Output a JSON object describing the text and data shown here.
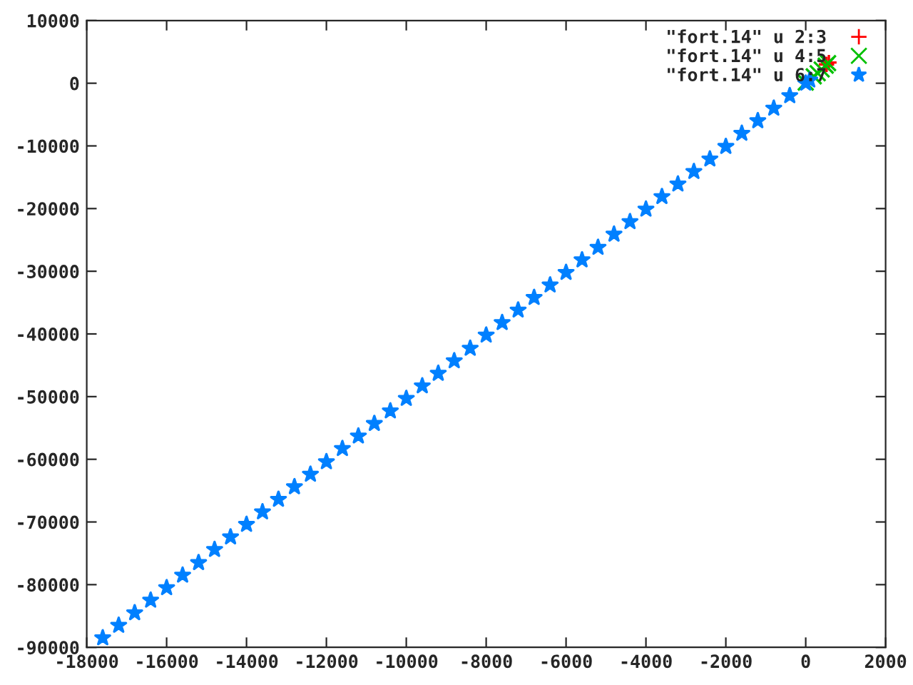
{
  "chart_data": {
    "type": "scatter",
    "legend": "top right",
    "grid": false,
    "xlim": [
      -18000,
      2000
    ],
    "xticks": [
      -18000,
      -16000,
      -14000,
      -12000,
      -10000,
      -8000,
      -6000,
      -4000,
      -2000,
      0,
      2000
    ],
    "ylim": [
      -90000,
      10000
    ],
    "yticks": [
      -90000,
      -80000,
      -70000,
      -60000,
      -50000,
      -40000,
      -30000,
      -20000,
      -10000,
      0,
      10000
    ],
    "series": [
      {
        "name": "\"fort.14\" u 2:3",
        "color": "#ff0000",
        "marker": "cross",
        "x": [
          520,
          580
        ],
        "values": [
          3000,
          3300
        ]
      },
      {
        "name": "\"fort.14\" u 4:5",
        "color": "#00c000",
        "marker": "x",
        "x": [
          0,
          200,
          300,
          400,
          500,
          560
        ],
        "values": [
          100,
          1100,
          1600,
          2200,
          2800,
          3200
        ]
      },
      {
        "name": "\"fort.14\" u 6:7",
        "color": "#0080ff",
        "marker": "star",
        "x": [
          -17600,
          -17200,
          -16800,
          -16400,
          -16000,
          -15600,
          -15200,
          -14800,
          -14400,
          -14000,
          -13600,
          -13200,
          -12800,
          -12400,
          -12000,
          -11600,
          -11200,
          -10800,
          -10400,
          -10000,
          -9600,
          -9200,
          -8800,
          -8400,
          -8000,
          -7600,
          -7200,
          -6800,
          -6400,
          -6000,
          -5600,
          -5200,
          -4800,
          -4400,
          -4000,
          -3600,
          -3200,
          -2800,
          -2400,
          -2000,
          -1600,
          -1200,
          -800,
          -400,
          0,
          100
        ],
        "values": [
          -88500,
          -86500,
          -84500,
          -82500,
          -80500,
          -78500,
          -76500,
          -74400,
          -72400,
          -70400,
          -68400,
          -66400,
          -64400,
          -62400,
          -60400,
          -58300,
          -56300,
          -54300,
          -52300,
          -50300,
          -48300,
          -46300,
          -44300,
          -42300,
          -40200,
          -38200,
          -36200,
          -34200,
          -32200,
          -30200,
          -28200,
          -26200,
          -24100,
          -22100,
          -20100,
          -18100,
          -16100,
          -14100,
          -12100,
          -10100,
          -8000,
          -6000,
          -4000,
          -2000,
          0,
          500
        ]
      }
    ]
  }
}
